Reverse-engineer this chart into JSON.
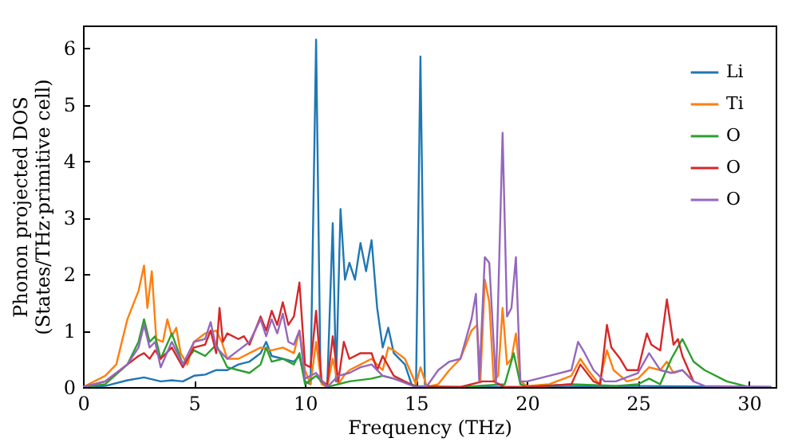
{
  "chart_data": {
    "type": "line",
    "xlabel": "Frequency (THz)",
    "ylabel": "Phonon projected DOS\n(States/THz·primitive cell)",
    "xlim": [
      0,
      31.2
    ],
    "ylim": [
      0,
      6.4
    ],
    "xticks": [
      0,
      5,
      10,
      15,
      20,
      25,
      30
    ],
    "yticks": [
      0,
      1,
      2,
      3,
      4,
      5,
      6
    ],
    "grid": false,
    "legend": "top right",
    "marker": "none",
    "line_style": "solid",
    "series": [
      {
        "name": "Li",
        "color": "#1f77b4",
        "x": [
          0,
          1,
          2,
          2.75,
          3.5,
          4,
          4.5,
          5,
          5.5,
          6,
          6.5,
          7,
          7.5,
          8,
          8.25,
          8.5,
          9,
          9.5,
          9.75,
          10,
          10.25,
          10.5,
          10.7,
          11,
          11.25,
          11.4,
          11.6,
          11.8,
          12,
          12.25,
          12.5,
          12.75,
          13,
          13.25,
          13.5,
          13.75,
          14,
          14.5,
          14.8,
          15,
          15.2,
          15.4,
          15.7,
          20,
          25,
          31
        ],
        "values": [
          0,
          0.02,
          0.12,
          0.17,
          0.1,
          0.12,
          0.1,
          0.2,
          0.22,
          0.3,
          0.3,
          0.4,
          0.45,
          0.6,
          0.8,
          0.55,
          0.5,
          0.45,
          0.55,
          0.1,
          0.05,
          6.15,
          0.1,
          0,
          2.9,
          0.1,
          3.15,
          1.9,
          2.2,
          1.9,
          2.55,
          2.05,
          2.6,
          1.4,
          0.7,
          1.05,
          0.6,
          0.4,
          0.05,
          0,
          5.85,
          0.05,
          0,
          0,
          0.02,
          0
        ]
      },
      {
        "name": "Ti",
        "color": "#ff7f0e",
        "x": [
          0,
          1,
          1.5,
          2,
          2.5,
          2.75,
          2.9,
          3.1,
          3.3,
          3.6,
          3.8,
          4,
          4.2,
          4.4,
          4.7,
          5,
          5.5,
          6,
          6.25,
          6.5,
          7,
          7.5,
          8,
          8.5,
          9,
          9.5,
          9.75,
          10,
          10.25,
          10.5,
          10.75,
          11,
          11.25,
          11.5,
          11.75,
          12,
          12.5,
          13,
          13.5,
          13.75,
          14,
          14.5,
          15,
          15.2,
          15.5,
          16,
          16.5,
          17,
          17.5,
          17.75,
          17.9,
          18.1,
          18.3,
          18.5,
          18.7,
          18.9,
          19.1,
          19.3,
          19.5,
          19.7,
          20,
          21,
          22,
          22.4,
          22.75,
          23.25,
          23.6,
          23.9,
          24.5,
          25,
          25.5,
          26,
          26.3,
          26.6,
          27,
          27.5
        ],
        "values": [
          0,
          0.2,
          0.4,
          1.2,
          1.7,
          2.15,
          1.4,
          2.05,
          0.85,
          0.8,
          1.2,
          0.9,
          1.05,
          0.6,
          0.4,
          0.8,
          0.95,
          1,
          0.8,
          0.5,
          0.5,
          0.6,
          0.7,
          0.65,
          0.7,
          0.6,
          1,
          0.3,
          0.05,
          0.8,
          0.05,
          0,
          0.5,
          0.05,
          0.2,
          0.3,
          0.4,
          0.5,
          0.3,
          0.7,
          0.65,
          0.5,
          0.05,
          0.35,
          0,
          0.05,
          0.3,
          0.5,
          1,
          1.1,
          0.1,
          1.9,
          1.5,
          0.1,
          0.2,
          1.4,
          0.4,
          0.5,
          0.95,
          0.1,
          0.02,
          0.05,
          0.2,
          0.5,
          0.3,
          0.05,
          0.65,
          0.3,
          0.1,
          0.15,
          0.35,
          0.3,
          0.45,
          0.25,
          0.3,
          0.1
        ]
      },
      {
        "name": "O",
        "color": "#2ca02c",
        "x": [
          0,
          1,
          2,
          2.5,
          2.75,
          3,
          3.25,
          3.5,
          4,
          4.5,
          5,
          5.5,
          6,
          6.5,
          7,
          7.5,
          8,
          8.25,
          8.5,
          9,
          9.5,
          9.75,
          10,
          10.5,
          11,
          12,
          13,
          13.5,
          14,
          15,
          17,
          19,
          19.4,
          19.7,
          20,
          22,
          24,
          25,
          25.5,
          26,
          26.5,
          27,
          27.5,
          28,
          29,
          30,
          31
        ],
        "values": [
          0,
          0.05,
          0.4,
          0.8,
          1.2,
          0.8,
          0.9,
          0.5,
          0.95,
          0.4,
          0.65,
          0.55,
          0.75,
          0.35,
          0.3,
          0.25,
          0.4,
          0.7,
          0.45,
          0.5,
          0.4,
          0.6,
          0.05,
          0.2,
          0,
          0.1,
          0.15,
          0.2,
          0.15,
          0.02,
          0,
          0.05,
          0.6,
          0.05,
          0,
          0.05,
          0.02,
          0.05,
          0.15,
          0.05,
          0.5,
          0.85,
          0.45,
          0.3,
          0.1,
          0,
          0
        ]
      },
      {
        "name": "O",
        "color": "#d62728",
        "x": [
          0,
          1,
          2,
          2.5,
          2.75,
          3,
          3.25,
          3.5,
          4,
          4.5,
          5,
          5.5,
          5.75,
          6,
          6.15,
          6.3,
          6.5,
          7,
          7.25,
          7.5,
          8,
          8.25,
          8.5,
          8.75,
          9,
          9.25,
          9.5,
          9.75,
          10,
          10.25,
          10.5,
          10.75,
          11,
          11.25,
          11.5,
          11.75,
          12,
          12.5,
          13,
          13.25,
          13.5,
          14,
          15,
          17,
          18,
          18.5,
          19,
          20,
          22,
          22.4,
          23,
          23.3,
          23.6,
          23.8,
          24.2,
          24.5,
          25,
          25.4,
          25.6,
          26,
          26.3,
          26.6,
          26.8,
          27,
          27.5
        ],
        "values": [
          0,
          0.1,
          0.4,
          0.55,
          0.6,
          0.5,
          0.65,
          0.5,
          0.7,
          0.35,
          0.7,
          0.75,
          1,
          0.6,
          1.4,
          0.8,
          0.95,
          0.85,
          0.9,
          0.75,
          1.25,
          1,
          1.35,
          1.1,
          1.5,
          1.1,
          1.25,
          1.85,
          0.4,
          0.35,
          1.35,
          0.1,
          0.05,
          0.9,
          0.1,
          0.8,
          0.5,
          0.6,
          0.6,
          0.3,
          0.55,
          0.2,
          0,
          0,
          0.1,
          0.1,
          0,
          0,
          0.05,
          0.4,
          0.1,
          0.05,
          1.1,
          0.7,
          0.5,
          0.3,
          0.3,
          0.95,
          0.75,
          0.65,
          1.55,
          0.75,
          0.85,
          0.55,
          0.1
        ]
      },
      {
        "name": "O",
        "color": "#9467bd",
        "x": [
          0,
          1,
          2,
          2.5,
          2.75,
          3,
          3.25,
          3.5,
          4,
          4.5,
          5,
          5.5,
          5.75,
          6,
          6.5,
          7,
          7.5,
          8,
          8.25,
          8.5,
          8.75,
          9,
          9.25,
          9.5,
          9.75,
          10,
          10.5,
          11,
          11.5,
          12,
          12.5,
          13,
          13.5,
          14,
          15,
          15.5,
          16,
          16.5,
          17,
          17.5,
          17.7,
          17.85,
          18.1,
          18.3,
          18.6,
          18.9,
          19.1,
          19.3,
          19.5,
          19.7,
          20,
          21,
          22,
          22.3,
          22.6,
          23,
          23.5,
          24,
          25,
          25.5,
          26,
          26.5,
          27,
          27.5,
          28,
          31
        ],
        "values": [
          0,
          0.1,
          0.4,
          0.7,
          1.1,
          0.7,
          0.8,
          0.35,
          0.8,
          0.4,
          0.8,
          0.85,
          1.15,
          0.7,
          0.5,
          0.65,
          0.8,
          1.2,
          0.9,
          1.2,
          0.95,
          1.3,
          0.8,
          0.75,
          1,
          0.15,
          0.25,
          0,
          0.2,
          0.25,
          0.35,
          0.4,
          0.2,
          0.15,
          0,
          0.02,
          0.3,
          0.45,
          0.5,
          1.2,
          1.65,
          0.1,
          2.3,
          2.2,
          0.05,
          4.5,
          1.25,
          1.4,
          2.3,
          0.1,
          0.1,
          0.2,
          0.3,
          0.8,
          0.6,
          0.3,
          0.1,
          0.1,
          0.25,
          0.6,
          0.3,
          0.25,
          0.3,
          0.1,
          0.02,
          0
        ]
      }
    ]
  }
}
